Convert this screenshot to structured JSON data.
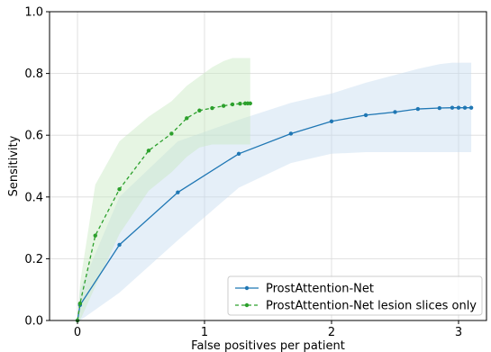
{
  "chart_data": {
    "type": "line",
    "xlabel": "False positives per patient",
    "ylabel": "Sensitivity",
    "xlim": [
      -0.22,
      3.22
    ],
    "ylim": [
      0.0,
      1.0
    ],
    "xticks": [
      0,
      1,
      2,
      3
    ],
    "xtick_labels": [
      "0",
      "1",
      "2",
      "3"
    ],
    "yticks": [
      0.0,
      0.2,
      0.4,
      0.6,
      0.8,
      1.0
    ],
    "ytick_labels": [
      "0.0",
      "0.2",
      "0.4",
      "0.6",
      "0.8",
      "1.0"
    ],
    "grid": true,
    "legend_position": "lower-right",
    "series": [
      {
        "name": "ProstAttention-Net",
        "color": "#1f77b4",
        "band_color": "#c6dbef",
        "line_style": "solid",
        "x": [
          0.0,
          0.02,
          0.33,
          0.79,
          1.27,
          1.68,
          2.0,
          2.27,
          2.5,
          2.68,
          2.85,
          2.95,
          3.0,
          3.05,
          3.1
        ],
        "y": [
          0.0,
          0.05,
          0.245,
          0.415,
          0.54,
          0.605,
          0.645,
          0.665,
          0.675,
          0.685,
          0.688,
          0.689,
          0.689,
          0.689,
          0.689
        ],
        "lower": [
          0.0,
          0.0,
          0.09,
          0.26,
          0.43,
          0.51,
          0.54,
          0.545,
          0.545,
          0.545,
          0.545,
          0.545,
          0.545,
          0.545,
          0.545
        ],
        "upper": [
          0.0,
          0.1,
          0.4,
          0.58,
          0.65,
          0.705,
          0.735,
          0.77,
          0.795,
          0.815,
          0.83,
          0.835,
          0.835,
          0.835,
          0.835
        ]
      },
      {
        "name": "ProstAttention-Net lesion slices only",
        "color": "#2ca02c",
        "band_color": "#c7e9c0",
        "line_style": "dashed",
        "x": [
          0.0,
          0.02,
          0.14,
          0.33,
          0.56,
          0.74,
          0.86,
          0.96,
          1.06,
          1.15,
          1.22,
          1.28,
          1.32,
          1.34,
          1.36
        ],
        "y": [
          0.0,
          0.055,
          0.275,
          0.425,
          0.55,
          0.605,
          0.655,
          0.68,
          0.688,
          0.695,
          0.7,
          0.702,
          0.703,
          0.703,
          0.703
        ],
        "lower": [
          0.0,
          0.0,
          0.11,
          0.28,
          0.42,
          0.48,
          0.53,
          0.56,
          0.57,
          0.57,
          0.57,
          0.57,
          0.57,
          0.57,
          0.57
        ],
        "upper": [
          0.0,
          0.12,
          0.44,
          0.58,
          0.66,
          0.71,
          0.76,
          0.79,
          0.82,
          0.84,
          0.85,
          0.85,
          0.85,
          0.85,
          0.85
        ]
      }
    ]
  }
}
